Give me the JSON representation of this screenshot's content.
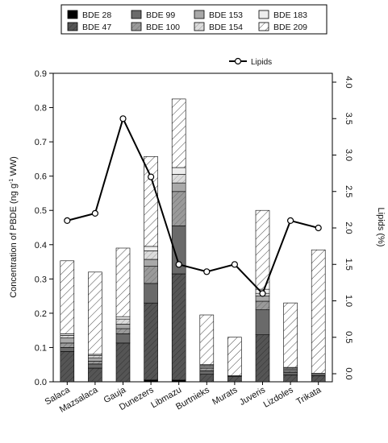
{
  "chart_data": {
    "type": "bar",
    "stacked": true,
    "categories": [
      "Salaca",
      "Mazsalaca",
      "Gauja",
      "Dunezers",
      "Libmazu",
      "Burtnieks",
      "Murats",
      "Juveris",
      "Lizdoles",
      "Trikata"
    ],
    "series": [
      {
        "name": "BDE 28",
        "fill": "black",
        "values": [
          0.0,
          0.0,
          0.0,
          0.005,
          0.005,
          0.0,
          0.0,
          0.0,
          0.0,
          0.0
        ]
      },
      {
        "name": "BDE 47",
        "fill": "dark",
        "values": [
          0.088,
          0.04,
          0.113,
          0.225,
          0.31,
          0.022,
          0.015,
          0.137,
          0.02,
          0.018
        ]
      },
      {
        "name": "BDE 99",
        "fill": "mid",
        "values": [
          0.012,
          0.012,
          0.027,
          0.057,
          0.14,
          0.01,
          0.003,
          0.073,
          0.007,
          0.004
        ]
      },
      {
        "name": "BDE 100",
        "fill": "mid-hatch",
        "values": [
          0.013,
          0.008,
          0.015,
          0.05,
          0.1,
          0.008,
          0.0,
          0.025,
          0.005,
          0.0
        ]
      },
      {
        "name": "BDE 153",
        "fill": "light",
        "values": [
          0.015,
          0.01,
          0.013,
          0.02,
          0.025,
          0.005,
          0.0,
          0.015,
          0.005,
          0.0
        ]
      },
      {
        "name": "BDE 154",
        "fill": "light-hatch",
        "values": [
          0.007,
          0.007,
          0.015,
          0.025,
          0.025,
          0.003,
          0.0,
          0.008,
          0.003,
          0.0
        ]
      },
      {
        "name": "BDE 183",
        "fill": "white",
        "values": [
          0.005,
          0.003,
          0.007,
          0.013,
          0.02,
          0.002,
          0.0,
          0.012,
          0.002,
          0.003
        ]
      },
      {
        "name": "BDE 209",
        "fill": "hatch",
        "values": [
          0.213,
          0.24,
          0.2,
          0.262,
          0.2,
          0.145,
          0.112,
          0.23,
          0.188,
          0.36
        ]
      }
    ],
    "line_series": {
      "name": "Lipids",
      "axis": "right",
      "values": [
        2.1,
        2.2,
        3.5,
        2.7,
        1.5,
        1.4,
        1.5,
        1.1,
        2.1,
        2.0
      ]
    },
    "legend": {
      "rows": [
        [
          "BDE 28",
          "BDE 99",
          "BDE 153",
          "BDE 183"
        ],
        [
          "BDE 47",
          "BDE 100",
          "BDE 154",
          "BDE 209"
        ]
      ],
      "placement": "top"
    },
    "ylabel": "Concentration of PBDE (ng g⁻¹ WW)",
    "ylabel_parts": {
      "pre": "Concentration of PBDE (ng g",
      "sup": "-1",
      "post": " WW)"
    },
    "y2label": "Lipids (%)",
    "ylim": [
      0,
      0.9
    ],
    "y2lim": [
      0,
      4.0
    ],
    "yticks": [
      "0.0",
      "0.1",
      "0.2",
      "0.3",
      "0.4",
      "0.5",
      "0.6",
      "0.7",
      "0.8",
      "0.9"
    ],
    "y2ticks": [
      "0.0",
      "0.5",
      "1.0",
      "1.5",
      "2.0",
      "2.5",
      "3.0",
      "3.5",
      "4.0"
    ],
    "grid": false
  }
}
